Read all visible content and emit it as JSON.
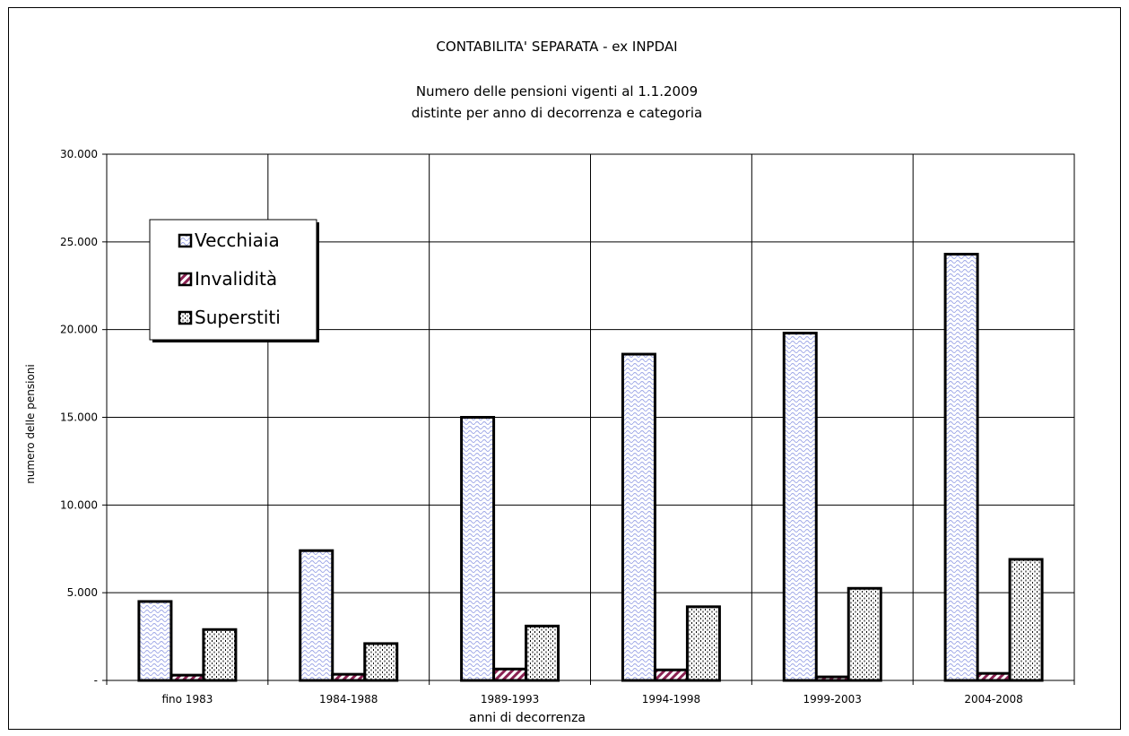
{
  "chart_data": {
    "type": "bar",
    "title": "CONTABILITA' SEPARATA - ex INPDAI",
    "subtitle_lines": [
      "Numero delle pensioni vigenti al 1.1.2009",
      "distinte per anno di decorrenza e categoria"
    ],
    "xlabel": "anni di decorrenza",
    "ylabel": "numero delle pensioni",
    "categories": [
      "fino 1983",
      "1984-1988",
      "1989-1993",
      "1994-1998",
      "1999-2003",
      "2004-2008"
    ],
    "ylim": [
      0,
      30000
    ],
    "yticks": [
      0,
      5000,
      10000,
      15000,
      20000,
      25000,
      30000
    ],
    "ytick_labels": [
      "-",
      "5.000",
      "10.000",
      "15.000",
      "20.000",
      "25.000",
      "30.000"
    ],
    "grid": true,
    "legend_position": "top-left",
    "series": [
      {
        "name": "Vecchiaia",
        "pattern": "wavy",
        "color": "#9aa4e6",
        "values": [
          4500,
          7400,
          15000,
          18600,
          19800,
          24300
        ]
      },
      {
        "name": "Invalidità",
        "pattern": "diagonal",
        "color": "#8b2252",
        "values": [
          300,
          350,
          650,
          600,
          200,
          400
        ]
      },
      {
        "name": "Superstiti",
        "pattern": "dotted",
        "color": "#000000",
        "values": [
          2900,
          2100,
          3100,
          4200,
          5250,
          6900
        ]
      }
    ]
  }
}
